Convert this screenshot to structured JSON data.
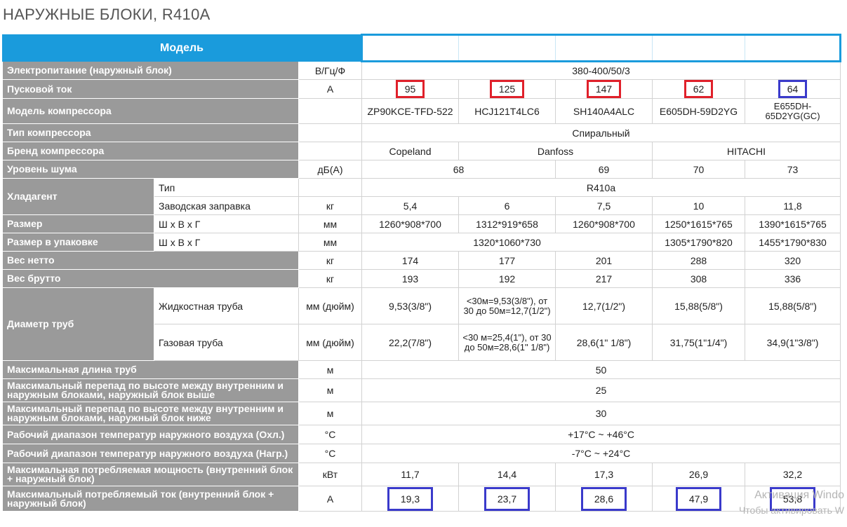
{
  "title": "НАРУЖНЫЕ БЛОКИ, R410A",
  "header": {
    "label": "Модель"
  },
  "rows": {
    "power": {
      "label": "Электропитание (наружный блок)",
      "unit": "В/Гц/Ф",
      "value": "380-400/50/3"
    },
    "start_current": {
      "label": "Пусковой ток",
      "unit": "А",
      "values": [
        "95",
        "125",
        "147",
        "62",
        "64"
      ]
    },
    "compressor_model": {
      "label": "Модель компрессора",
      "values": [
        "ZP90KCE-TFD-522",
        "HCJ121T4LC6",
        "SH140A4ALC",
        "E605DH-59D2YG",
        "E655DH-65D2YG(GC)"
      ]
    },
    "compressor_type": {
      "label": "Тип компрессора",
      "value": "Спиральный"
    },
    "compressor_brand": {
      "label": "Бренд компрессора",
      "values": [
        "Copeland",
        "Danfoss",
        "HITACHI"
      ]
    },
    "noise": {
      "label": "Уровень шума",
      "unit": "дБ(А)",
      "values": [
        "68",
        "69",
        "70",
        "73"
      ]
    },
    "refrigerant": {
      "label": "Хладагент",
      "type_label": "Тип",
      "type_value": "R410a",
      "charge_label": "Заводская заправка",
      "charge_unit": "кг",
      "charge_values": [
        "5,4",
        "6",
        "7,5",
        "10",
        "11,8"
      ]
    },
    "size": {
      "label": "Размер",
      "sub": "Ш х В х Г",
      "unit": "мм",
      "values": [
        "1260*908*700",
        "1312*919*658",
        "1260*908*700",
        "1250*1615*765",
        "1390*1615*765"
      ]
    },
    "pack_size": {
      "label": "Размер в упаковке",
      "sub": "Ш х В х Г",
      "unit": "мм",
      "values": [
        "1320*1060*730",
        "1305*1790*820",
        "1455*1790*830"
      ]
    },
    "net_weight": {
      "label": "Вес нетто",
      "unit": "кг",
      "values": [
        "174",
        "177",
        "201",
        "288",
        "320"
      ]
    },
    "gross_weight": {
      "label": "Вес брутто",
      "unit": "кг",
      "values": [
        "193",
        "192",
        "217",
        "308",
        "336"
      ]
    },
    "pipe": {
      "label": "Диаметр труб",
      "liquid_label": "Жидкостная труба",
      "gas_label": "Газовая труба",
      "unit": "мм (дюйм)",
      "liquid_values": [
        "9,53(3/8\")",
        "<30м=9,53(3/8\"), от 30 до 50м=12,7(1/2\")",
        "12,7(1/2\")",
        "15,88(5/8\")",
        "15,88(5/8\")"
      ],
      "gas_values": [
        "22,2(7/8\")",
        "<30 м=25,4(1\"), от 30 до 50м=28,6(1\" 1/8\")",
        "28,6(1\" 1/8\")",
        "31,75(1\"1/4\")",
        "34,9(1\"3/8\")"
      ]
    },
    "max_length": {
      "label": "Максимальная длина труб",
      "unit": "м",
      "value": "50"
    },
    "height_above": {
      "label": "Максимальный перепад по высоте между внутренним и наружным блоками, наружный блок выше",
      "unit": "м",
      "value": "25"
    },
    "height_below": {
      "label": "Максимальный перепад по высоте между внутренним и наружным блоками, наружный блок ниже",
      "unit": "м",
      "value": "30"
    },
    "temp_cool": {
      "label": "Рабочий диапазон температур наружного воздуха (Охл.)",
      "unit": "°С",
      "value": "+17°С ~ +46°С"
    },
    "temp_heat": {
      "label": "Рабочий диапазон температур наружного воздуха (Нагр.)",
      "unit": "°С",
      "value": "-7°С ~ +24°С"
    },
    "max_power": {
      "label": "Максимальная потребляемая мощность (внутренний блок + наружный блок)",
      "unit": "кВт",
      "values": [
        "11,7",
        "14,4",
        "17,3",
        "26,9",
        "32,2"
      ]
    },
    "max_current": {
      "label": "Максимальный потребляемый ток (внутренний блок + наружный блок)",
      "unit": "А",
      "values": [
        "19,3",
        "23,7",
        "28,6",
        "47,9",
        "53,8"
      ]
    }
  },
  "highlight_colors": {
    "red": "#e0202a",
    "blue": "#3a3acb",
    "header": "#1a9bdc"
  },
  "watermark": {
    "line1": "Активация Windo",
    "line2": "Чтобы активировать W"
  }
}
